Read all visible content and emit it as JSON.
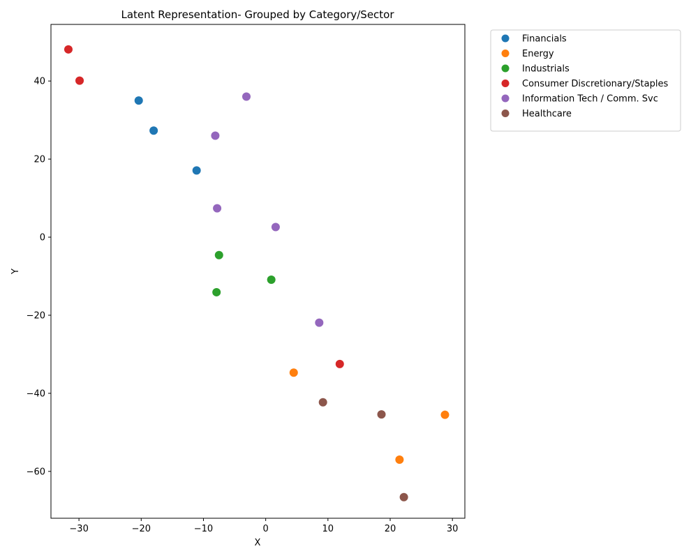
{
  "chart_data": {
    "type": "scatter",
    "title": "Latent Representation- Grouped by Category/Sector",
    "xlabel": "X",
    "ylabel": "Y",
    "xlim": [
      -34.5,
      32
    ],
    "ylim": [
      -72,
      54.5
    ],
    "xticks": [
      -30,
      -20,
      -10,
      0,
      10,
      20,
      30
    ],
    "yticks": [
      40,
      20,
      0,
      -20,
      -40,
      -60
    ],
    "xtick_labels": [
      "−30",
      "−20",
      "−10",
      "0",
      "10",
      "20",
      "30"
    ],
    "ytick_labels": [
      "40",
      "20",
      "0",
      "−20",
      "−40",
      "−60"
    ],
    "grid": false,
    "legend_position": "outside-top-right",
    "series": [
      {
        "name": "Financials",
        "color": "#1f77b4",
        "points": [
          [
            -20.4,
            35.0
          ],
          [
            -18.0,
            27.3
          ],
          [
            -11.1,
            17.1
          ]
        ]
      },
      {
        "name": "Energy",
        "color": "#ff7f0e",
        "points": [
          [
            4.5,
            -34.7
          ],
          [
            28.8,
            -45.5
          ],
          [
            21.5,
            -57.0
          ]
        ]
      },
      {
        "name": "Industrials",
        "color": "#2ca02c",
        "points": [
          [
            -7.5,
            -4.6
          ],
          [
            0.9,
            -10.9
          ],
          [
            -7.9,
            -14.1
          ]
        ]
      },
      {
        "name": "Consumer Discretionary/Staples",
        "color": "#d62728",
        "points": [
          [
            -31.7,
            48.1
          ],
          [
            -29.9,
            40.1
          ],
          [
            11.9,
            -32.5
          ]
        ]
      },
      {
        "name": "Information Tech / Comm. Svc",
        "color": "#9467bd",
        "points": [
          [
            -3.1,
            36.0
          ],
          [
            -8.1,
            26.0
          ],
          [
            -7.8,
            7.4
          ],
          [
            1.6,
            2.6
          ],
          [
            8.6,
            -21.9
          ]
        ]
      },
      {
        "name": "Healthcare",
        "color": "#8c564b",
        "points": [
          [
            9.2,
            -42.3
          ],
          [
            18.6,
            -45.4
          ],
          [
            22.2,
            -66.6
          ]
        ]
      }
    ]
  }
}
